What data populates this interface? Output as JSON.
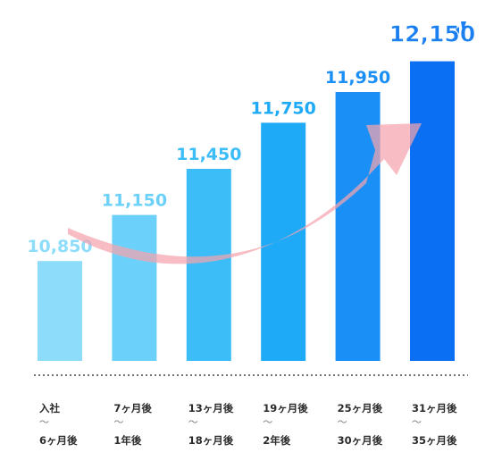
{
  "chart_data": {
    "type": "bar",
    "categories": [
      {
        "lines": [
          "入社",
          "〜",
          "6ヶ月後"
        ]
      },
      {
        "lines": [
          "7ヶ月後",
          "〜",
          "1年後"
        ]
      },
      {
        "lines": [
          "13ヶ月後",
          "〜",
          "18ヶ月後"
        ]
      },
      {
        "lines": [
          "19ヶ月後",
          "〜",
          "2年後"
        ]
      },
      {
        "lines": [
          "25ヶ月後",
          "〜",
          "30ヶ月後"
        ]
      },
      {
        "lines": [
          "31ヶ月後",
          "〜",
          "35ヶ月後"
        ]
      }
    ],
    "values": [
      10850,
      11150,
      11450,
      11750,
      11950,
      12150
    ],
    "value_labels": [
      "10,850",
      "11,150",
      "11,450",
      "11,750",
      "11,950",
      "12,150"
    ],
    "bar_colors": [
      "#8ddcfa",
      "#6cd1fa",
      "#3cbdf8",
      "#1faaf7",
      "#1a8ff5",
      "#0a6ff2"
    ],
    "label_colors": [
      "#8ddcfa",
      "#6cd1fa",
      "#3cbdf8",
      "#1faaf7",
      "#1a8ff5",
      "#1a7ff0"
    ],
    "highlight_index": 5,
    "ylim": [
      10200,
      12200
    ],
    "title": "",
    "xlabel": "",
    "ylabel": "",
    "grid": false,
    "legend": "none",
    "trend_arrow_color": "#f5a3ad",
    "baseline_style": "dotted"
  }
}
